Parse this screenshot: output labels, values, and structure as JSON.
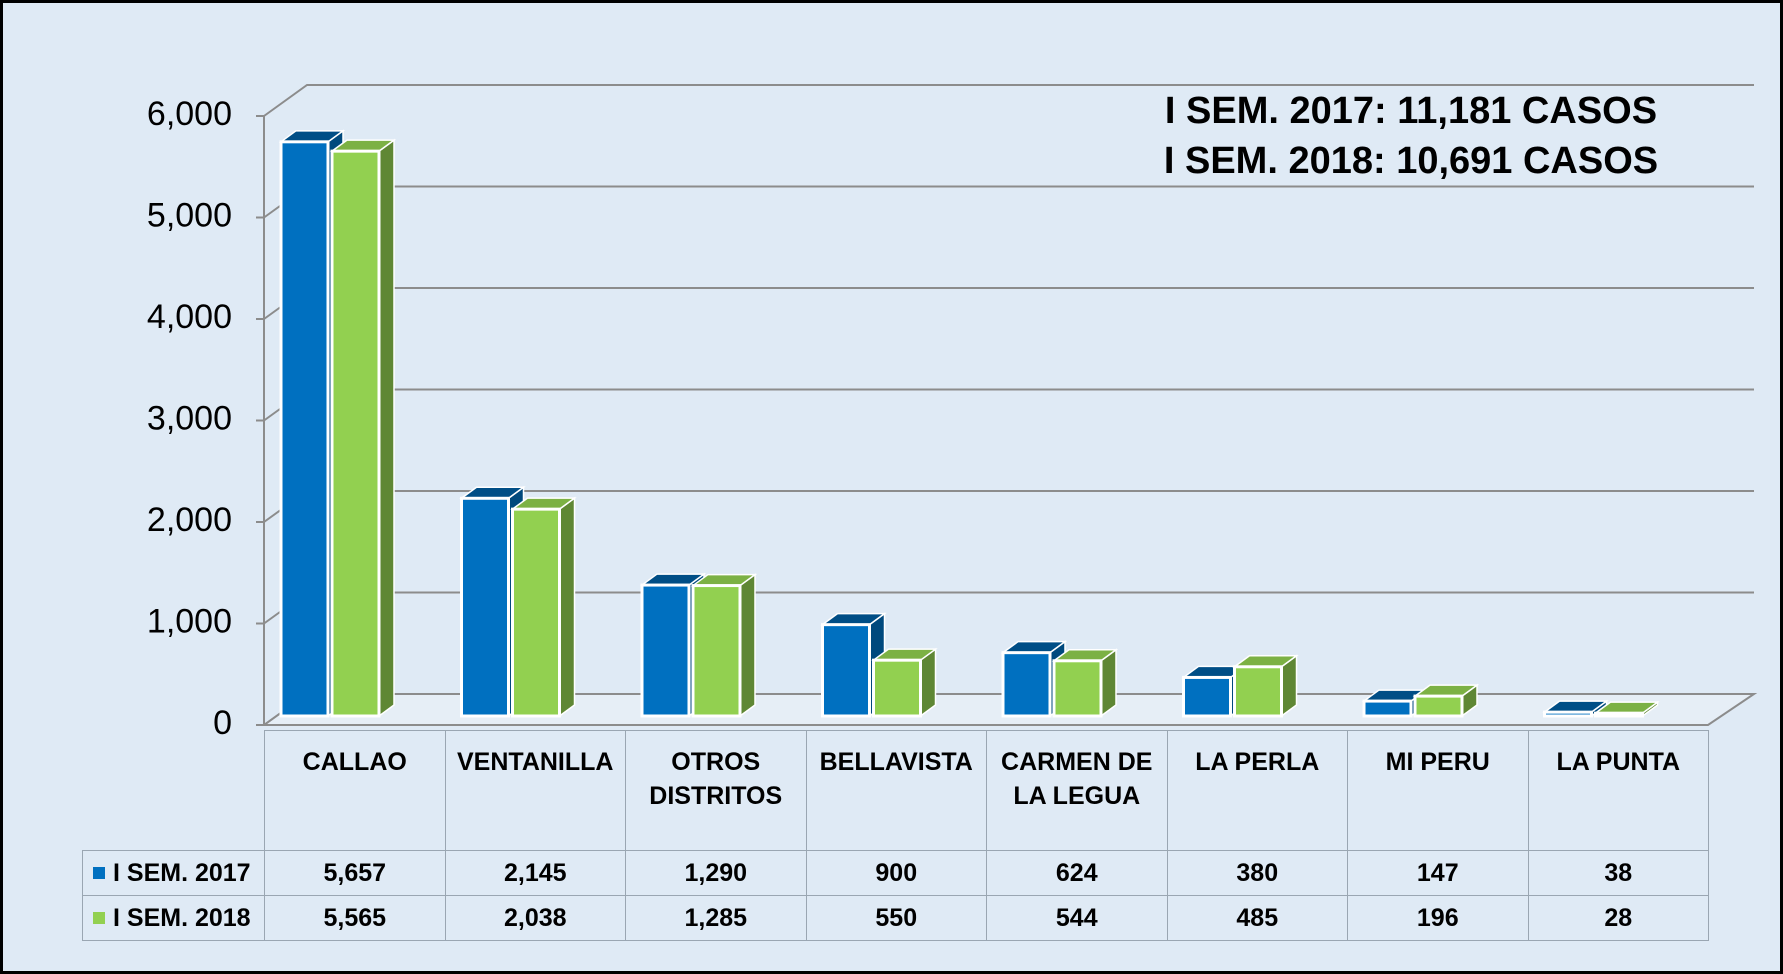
{
  "chart_data": {
    "type": "bar3d",
    "annotations": [
      "I SEM. 2017: 11,181 CASOS",
      "I SEM. 2018: 10,691  CASOS"
    ],
    "categories": [
      "CALLAO",
      "VENTANILLA",
      "OTROS DISTRITOS",
      "BELLAVISTA",
      "CARMEN DE LA LEGUA",
      "LA PERLA",
      "MI PERU",
      "LA PUNTA"
    ],
    "series": [
      {
        "name": "I SEM. 2017",
        "color": "#0070c0",
        "values": [
          5657,
          2145,
          1290,
          900,
          624,
          380,
          147,
          38
        ],
        "value_labels": [
          "5,657",
          "2,145",
          "1,290",
          "900",
          "624",
          "380",
          "147",
          "38"
        ]
      },
      {
        "name": "I SEM. 2018",
        "color": "#92d050",
        "values": [
          5565,
          2038,
          1285,
          550,
          544,
          485,
          196,
          28
        ],
        "value_labels": [
          "5,565",
          "2,038",
          "1,285",
          "550",
          "544",
          "485",
          "196",
          "28"
        ]
      }
    ],
    "ylim": [
      0,
      6000
    ],
    "yticks": [
      0,
      {
        "value": 1000,
        "label": "1,000"
      },
      {
        "value": 2000,
        "label": "2,000"
      },
      {
        "value": 3000,
        "label": "3,000"
      },
      {
        "value": 4000,
        "label": "4,000"
      },
      {
        "value": 5000,
        "label": "5,000"
      },
      {
        "value": 6000,
        "label": "6,000"
      }
    ],
    "grid": true
  }
}
